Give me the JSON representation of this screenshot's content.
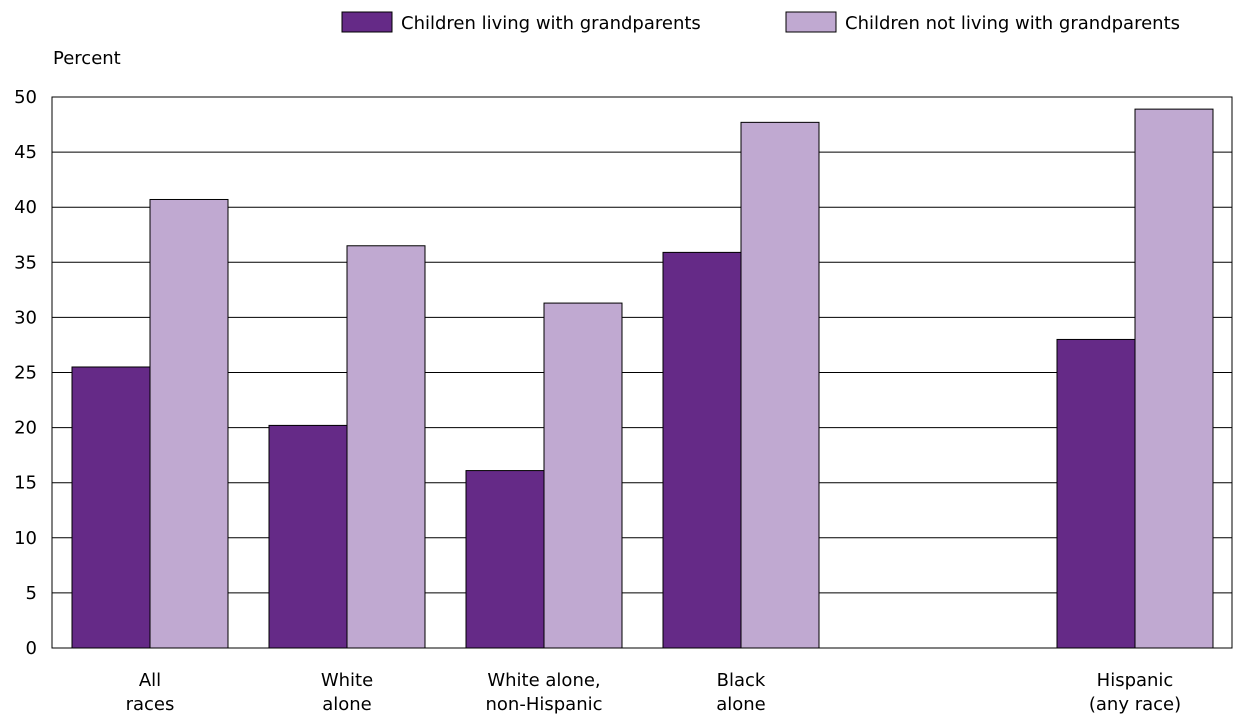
{
  "chart_data": {
    "type": "bar",
    "ylabel": "Percent",
    "ylim": [
      0,
      50
    ],
    "yticks": [
      0,
      5,
      10,
      15,
      20,
      25,
      30,
      35,
      40,
      45,
      50
    ],
    "grid": true,
    "legend_position": "top-right",
    "categories": [
      [
        "All",
        "races"
      ],
      [
        "White",
        "alone"
      ],
      [
        "White alone,",
        "non-Hispanic"
      ],
      [
        "Black",
        "alone"
      ],
      [
        "",
        ""
      ],
      [
        "Hispanic",
        "(any race)"
      ]
    ],
    "series": [
      {
        "name": "Children living with grandparents",
        "color": "#652a87",
        "values": [
          25.5,
          20.2,
          16.1,
          35.9,
          null,
          28.0
        ]
      },
      {
        "name": "Children not living with grandparents",
        "color": "#c0a9d1",
        "values": [
          40.7,
          36.5,
          31.3,
          47.7,
          null,
          48.9
        ]
      }
    ]
  }
}
